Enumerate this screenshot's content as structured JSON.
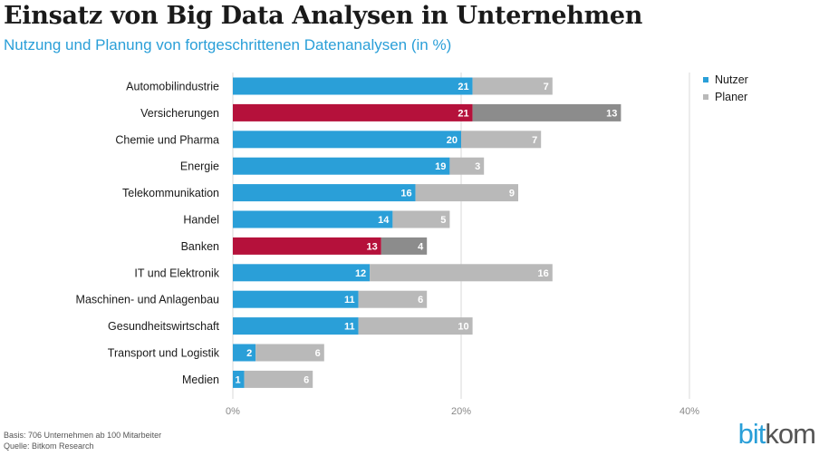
{
  "title": "Einsatz von Big Data Analysen in Unternehmen",
  "subtitle": "Nutzung und Planung von fortgeschrittenen Datenanalysen (in %)",
  "footnote": {
    "basis": "Basis: 706 Unternehmen ab 100 Mitarbeiter",
    "source": "Quelle: Bitkom Research"
  },
  "logo": {
    "part1": "bit",
    "part2": "kom"
  },
  "colors": {
    "nutzer": "#2a9fd8",
    "planer": "#b9b9b9",
    "highlight_nutzer": "#b5113b",
    "highlight_planer": "#8c8c8c",
    "label_on_bar": "#ffffff",
    "grid": "#d9d9d9"
  },
  "chart_data": {
    "type": "bar",
    "orientation": "horizontal",
    "stacked": true,
    "categories": [
      "Automobilindustrie",
      "Versicherungen",
      "Chemie und Pharma",
      "Energie",
      "Telekommunikation",
      "Handel",
      "Banken",
      "IT und Elektronik",
      "Maschinen- und Anlagenbau",
      "Gesundheitswirtschaft",
      "Transport und Logistik",
      "Medien"
    ],
    "series": [
      {
        "name": "Nutzer",
        "values": [
          21,
          21,
          20,
          19,
          16,
          14,
          13,
          12,
          11,
          11,
          2,
          1
        ]
      },
      {
        "name": "Planer",
        "values": [
          7,
          13,
          7,
          3,
          9,
          5,
          4,
          16,
          6,
          10,
          6,
          6
        ]
      }
    ],
    "highlighted_categories": [
      "Versicherungen",
      "Banken"
    ],
    "xlim": [
      0,
      40
    ],
    "x_ticks": [
      0,
      20,
      40
    ],
    "x_tick_labels": [
      "0%",
      "20%",
      "40%"
    ],
    "grid": true,
    "legend": "top-right"
  }
}
